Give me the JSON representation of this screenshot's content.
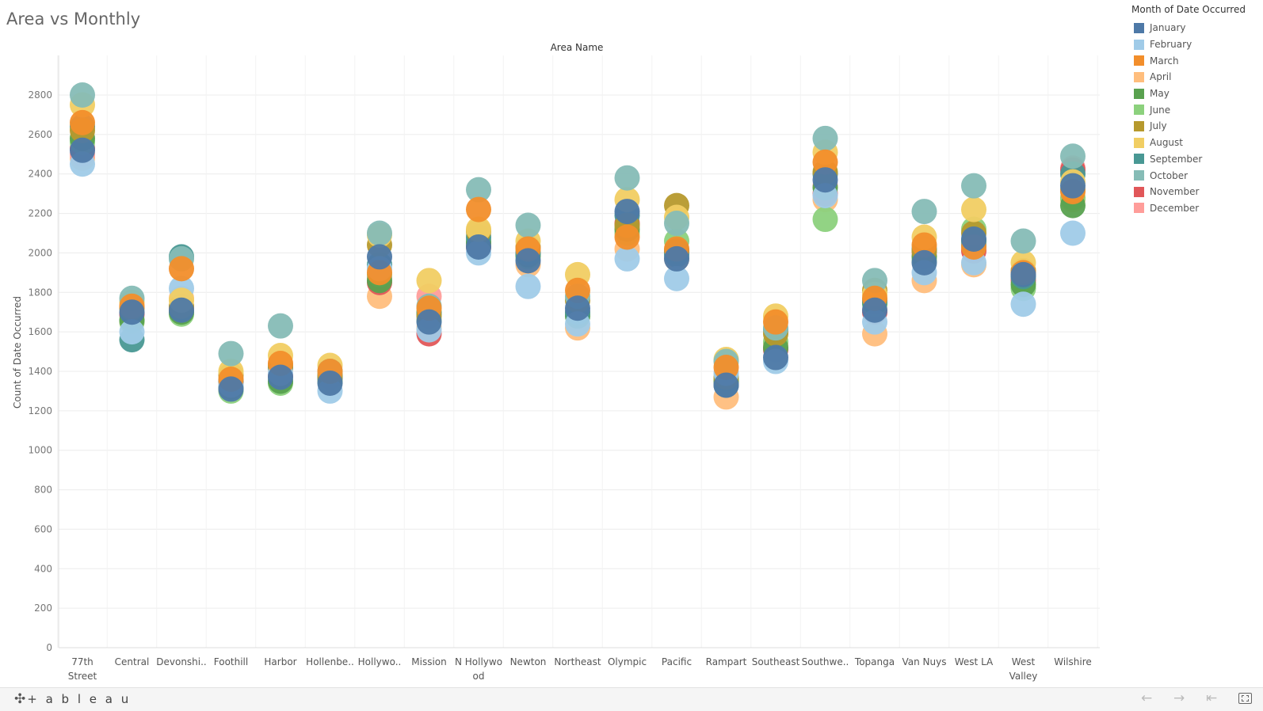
{
  "title": "Area  vs Monthly",
  "legend": {
    "title": "Month of Date Occurred",
    "items": [
      {
        "label": "January",
        "color": "#4e79a7"
      },
      {
        "label": "February",
        "color": "#a0cbe8"
      },
      {
        "label": "March",
        "color": "#f28e2b"
      },
      {
        "label": "April",
        "color": "#ffbe7d"
      },
      {
        "label": "May",
        "color": "#59a14f"
      },
      {
        "label": "June",
        "color": "#8cd17d"
      },
      {
        "label": "July",
        "color": "#b6992d"
      },
      {
        "label": "August",
        "color": "#f1ce63"
      },
      {
        "label": "September",
        "color": "#499894"
      },
      {
        "label": "October",
        "color": "#86bcb6"
      },
      {
        "label": "November",
        "color": "#e15759"
      },
      {
        "label": "December",
        "color": "#ff9d9a"
      }
    ]
  },
  "footer": {
    "brand": "+ a b l e a u",
    "back_icon": "back-arrow-icon",
    "forward_icon": "forward-arrow-icon",
    "reset_icon": "reset-icon",
    "fullscreen_icon": "fullscreen-icon"
  },
  "chart_data": {
    "type": "scatter",
    "title": "Area  vs Monthly",
    "xlabel": "Area Name",
    "ylabel": "Count of Date Occurred",
    "ylim": [
      0,
      2800
    ],
    "yticks": [
      0,
      200,
      400,
      600,
      800,
      1000,
      1200,
      1400,
      1600,
      1800,
      2000,
      2200,
      2400,
      2600,
      2800
    ],
    "grid": true,
    "legend_position": "right",
    "categories": [
      "77th Street",
      "Central",
      "Devonshi..",
      "Foothill",
      "Harbor",
      "Hollenbe..",
      "Hollywo..",
      "Mission",
      "N Hollywood",
      "Newton",
      "Northeast",
      "Olympic",
      "Pacific",
      "Rampart",
      "Southeast",
      "Southwe..",
      "Topanga",
      "Van Nuys",
      "West LA",
      "West Valley",
      "Wilshire"
    ],
    "series": [
      {
        "name": "January",
        "values": [
          2520,
          1700,
          1710,
          1310,
          1370,
          1340,
          1980,
          1650,
          2030,
          1960,
          1720,
          2210,
          1970,
          1330,
          1470,
          2370,
          1710,
          1950,
          2070,
          1890,
          2340
        ]
      },
      {
        "name": "February",
        "values": [
          2450,
          1600,
          1820,
          1330,
          1390,
          1300,
          1920,
          1610,
          2000,
          1830,
          1640,
          1970,
          1870,
          1390,
          1450,
          2290,
          1650,
          1900,
          1950,
          1740,
          2100
        ]
      },
      {
        "name": "March",
        "values": [
          2660,
          1730,
          1920,
          1360,
          1440,
          1400,
          1900,
          1720,
          2220,
          2020,
          1810,
          2080,
          2020,
          1420,
          1650,
          2460,
          1770,
          2040,
          2030,
          1900,
          2310
        ]
      },
      {
        "name": "April",
        "values": [
          2480,
          1650,
          1770,
          1340,
          1410,
          1350,
          1780,
          1620,
          2050,
          1940,
          1620,
          2020,
          1970,
          1270,
          1540,
          2270,
          1590,
          1860,
          1940,
          1880,
          2270
        ]
      },
      {
        "name": "May",
        "values": [
          2580,
          1660,
          1700,
          1320,
          1350,
          1380,
          1860,
          1700,
          2050,
          1990,
          1680,
          2120,
          2010,
          1350,
          1520,
          2330,
          1750,
          1980,
          2060,
          1840,
          2240
        ]
      },
      {
        "name": "June",
        "values": [
          2560,
          1650,
          1690,
          1300,
          1340,
          1350,
          1890,
          1660,
          2060,
          1980,
          1690,
          2100,
          2060,
          1360,
          1550,
          2170,
          1740,
          1960,
          2120,
          1820,
          2280
        ]
      },
      {
        "name": "July",
        "values": [
          2620,
          1720,
          1730,
          1380,
          1430,
          1380,
          2040,
          1680,
          2110,
          2030,
          1760,
          2140,
          2240,
          1370,
          1590,
          2410,
          1810,
          2010,
          2100,
          1910,
          2320
        ]
      },
      {
        "name": "August",
        "values": [
          2750,
          1750,
          1760,
          1400,
          1480,
          1430,
          2090,
          1860,
          2120,
          2060,
          1890,
          2270,
          2180,
          1460,
          1680,
          2510,
          1790,
          2080,
          2220,
          1950,
          2360
        ]
      },
      {
        "name": "September",
        "values": [
          2640,
          1560,
          1980,
          1350,
          1420,
          1370,
          1940,
          1690,
          2080,
          2000,
          1700,
          2190,
          1990,
          1330,
          1610,
          2400,
          1760,
          2020,
          2040,
          1880,
          2400
        ]
      },
      {
        "name": "October",
        "values": [
          2800,
          1770,
          1970,
          1490,
          1630,
          1400,
          2100,
          1730,
          2320,
          2140,
          1780,
          2380,
          2150,
          1450,
          1620,
          2580,
          1860,
          2210,
          2340,
          2060,
          2490
        ]
      },
      {
        "name": "November",
        "values": [
          2530,
          1690,
          1720,
          1350,
          1380,
          1360,
          1850,
          1590,
          2030,
          1990,
          1690,
          2150,
          2010,
          1340,
          1510,
          2300,
          1700,
          2010,
          2010,
          1860,
          2420
        ]
      },
      {
        "name": "December",
        "values": [
          2500,
          1690,
          1700,
          1340,
          1380,
          1360,
          1880,
          1780,
          2060,
          2000,
          1700,
          2140,
          2010,
          1330,
          1520,
          2340,
          1710,
          1990,
          2020,
          1870,
          2430
        ]
      }
    ]
  }
}
